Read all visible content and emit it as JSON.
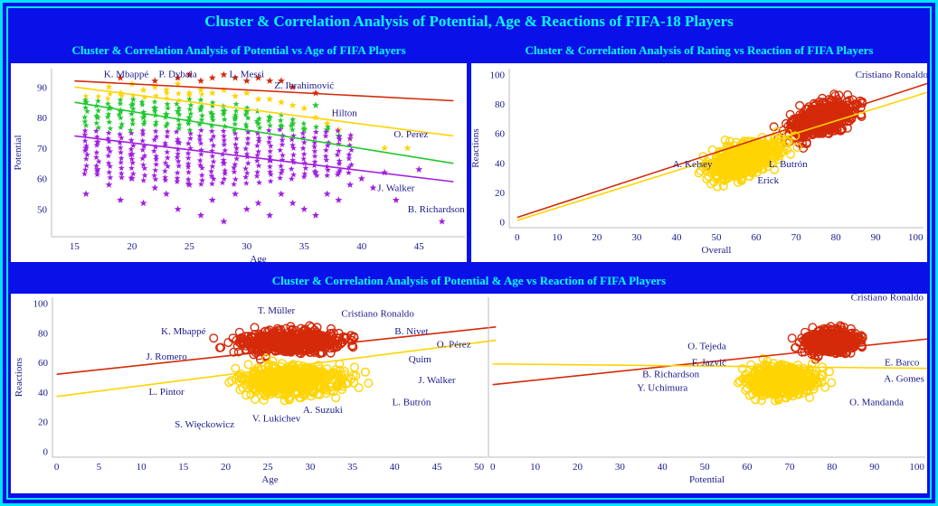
{
  "main_title": "Cluster & Correlation Analysis of Potential, Age & Reactions of FIFA-18 Players",
  "colors": {
    "background": "#0a10e8",
    "border": "#00e5ff",
    "title": "#00ffff",
    "label": "#1a1a8c",
    "red": "#d42a0a",
    "yellow": "#ffd400",
    "green": "#22c830",
    "purple": "#a020e0",
    "orange": "#ff8c00"
  },
  "chart_data": [
    {
      "type": "scatter",
      "title": "Cluster & Correlation Analysis of Potential vs Age of FIFA Players",
      "xlabel": "Age",
      "ylabel": "Potential",
      "xlim": [
        13,
        49
      ],
      "ylim": [
        41,
        96
      ],
      "xticks": [
        15,
        20,
        25,
        30,
        35,
        40,
        45
      ],
      "yticks": [
        50,
        60,
        70,
        80,
        90
      ],
      "marker": "star",
      "series": [
        {
          "color": "#a020e0",
          "points": [
            [
              16,
              55
            ],
            [
              17,
              63
            ],
            [
              18,
              58
            ],
            [
              19,
              53
            ],
            [
              20,
              60
            ],
            [
              21,
              52
            ],
            [
              22,
              57
            ],
            [
              23,
              55
            ],
            [
              24,
              50
            ],
            [
              25,
              58
            ],
            [
              26,
              48
            ],
            [
              27,
              53
            ],
            [
              28,
              46
            ],
            [
              29,
              55
            ],
            [
              30,
              50
            ],
            [
              31,
              52
            ],
            [
              32,
              48
            ],
            [
              33,
              55
            ],
            [
              34,
              52
            ],
            [
              35,
              50
            ],
            [
              36,
              48
            ],
            [
              37,
              55
            ],
            [
              38,
              53
            ],
            [
              39,
              58
            ],
            [
              40,
              60
            ],
            [
              41,
              57
            ],
            [
              42,
              62
            ],
            [
              43,
              53
            ],
            [
              45,
              63
            ],
            [
              47,
              46
            ],
            [
              16,
              70
            ],
            [
              17,
              72
            ],
            [
              20,
              68
            ],
            [
              24,
              72
            ],
            [
              28,
              65
            ],
            [
              32,
              66
            ],
            [
              36,
              62
            ],
            [
              38,
              62
            ]
          ]
        },
        {
          "color": "#22c830",
          "points": [
            [
              16,
              85
            ],
            [
              17,
              80
            ],
            [
              18,
              83
            ],
            [
              19,
              82
            ],
            [
              20,
              84
            ],
            [
              21,
              80
            ],
            [
              22,
              83
            ],
            [
              23,
              81
            ],
            [
              24,
              82
            ],
            [
              25,
              80
            ],
            [
              26,
              83
            ],
            [
              27,
              81
            ],
            [
              28,
              82
            ],
            [
              29,
              80
            ],
            [
              30,
              82
            ],
            [
              31,
              78
            ],
            [
              32,
              80
            ],
            [
              33,
              77
            ],
            [
              34,
              78
            ],
            [
              35,
              76
            ],
            [
              36,
              84
            ],
            [
              37,
              76
            ],
            [
              38,
              74
            ]
          ]
        },
        {
          "color": "#ffd400",
          "points": [
            [
              18,
              90
            ],
            [
              19,
              88
            ],
            [
              20,
              91
            ],
            [
              21,
              89
            ],
            [
              22,
              90
            ],
            [
              23,
              89
            ],
            [
              24,
              91
            ],
            [
              25,
              88
            ],
            [
              26,
              89
            ],
            [
              27,
              88
            ],
            [
              28,
              89
            ],
            [
              29,
              87
            ],
            [
              30,
              88
            ],
            [
              31,
              86
            ],
            [
              32,
              86
            ],
            [
              33,
              85
            ],
            [
              34,
              84
            ],
            [
              35,
              83
            ],
            [
              36,
              80
            ],
            [
              37,
              78
            ],
            [
              38,
              76
            ],
            [
              39,
              73
            ],
            [
              42,
              70
            ],
            [
              44,
              70
            ]
          ]
        },
        {
          "color": "#d42a0a",
          "points": [
            [
              19,
              93
            ],
            [
              22,
              92
            ],
            [
              24,
              93
            ],
            [
              25,
              94
            ],
            [
              26,
              92
            ],
            [
              27,
              93
            ],
            [
              28,
              94
            ],
            [
              29,
              93
            ],
            [
              30,
              92
            ],
            [
              31,
              93
            ],
            [
              32,
              92
            ],
            [
              33,
              92
            ],
            [
              34,
              90
            ],
            [
              36,
              88
            ]
          ]
        }
      ],
      "trend_lines": [
        {
          "color": "#d42a0a",
          "from": [
            15,
            92
          ],
          "to": [
            48,
            85.5
          ]
        },
        {
          "color": "#ffd400",
          "from": [
            15,
            90
          ],
          "to": [
            48,
            74
          ]
        },
        {
          "color": "#22c830",
          "from": [
            15,
            85
          ],
          "to": [
            48,
            65
          ]
        },
        {
          "color": "#a020e0",
          "from": [
            15,
            74
          ],
          "to": [
            48,
            59
          ]
        }
      ],
      "annotations": [
        {
          "text": "K. Mbappé",
          "x": 19.5,
          "y": 93.2
        },
        {
          "text": "P. Dybala",
          "x": 24,
          "y": 93.2
        },
        {
          "text": "L. Messi",
          "x": 30,
          "y": 93.2
        },
        {
          "text": "Z. Ibrahimović",
          "x": 35,
          "y": 89.5
        },
        {
          "text": "Hilton",
          "x": 38.5,
          "y": 80.5
        },
        {
          "text": "O. Perez",
          "x": 44.3,
          "y": 73.5
        },
        {
          "text": "J. Walker",
          "x": 43,
          "y": 56
        },
        {
          "text": "B. Richardson",
          "x": 46.5,
          "y": 49
        }
      ]
    },
    {
      "type": "scatter",
      "title": "Cluster & Correlation Analysis of Rating vs Reaction of FIFA Players",
      "xlabel": "Overall",
      "ylabel": "Reactions",
      "xlim": [
        -2,
        102
      ],
      "ylim": [
        -4,
        104
      ],
      "xticks": [
        0,
        10,
        20,
        30,
        40,
        50,
        60,
        70,
        80,
        90,
        100
      ],
      "yticks": [
        0,
        20,
        40,
        60,
        80,
        100
      ],
      "marker": "circle",
      "clusters": [
        {
          "color": "#d42a0a",
          "center": [
            77,
            70
          ],
          "spread": [
            8,
            11
          ]
        },
        {
          "color": "#ffd400",
          "center": [
            57,
            43
          ],
          "spread": [
            9,
            11
          ]
        }
      ],
      "trend_lines": [
        {
          "color": "#d42a0a",
          "from": [
            0,
            3
          ],
          "to": [
            103,
            94
          ]
        },
        {
          "color": "#ffd400",
          "from": [
            0,
            1
          ],
          "to": [
            103,
            88
          ]
        }
      ],
      "annotations": [
        {
          "text": "Cristiano Ronaldo",
          "x": 94,
          "y": 98
        },
        {
          "text": "A. Kelsey",
          "x": 44,
          "y": 37
        },
        {
          "text": "L. Butrón",
          "x": 68,
          "y": 37
        },
        {
          "text": "Erick",
          "x": 63,
          "y": 26
        }
      ]
    },
    {
      "type": "scatter",
      "title": "Cluster & Correlation Analysis of Potential & Age vs Reaction of FIFA Players",
      "xlabel": "Age",
      "ylabel": "Reactions",
      "xlim": [
        -0.5,
        51
      ],
      "ylim": [
        -4,
        104
      ],
      "xticks": [
        0,
        5,
        10,
        15,
        20,
        25,
        30,
        35,
        40,
        45,
        50
      ],
      "yticks": [
        0,
        20,
        40,
        60,
        80,
        100
      ],
      "marker": "circle",
      "clusters": [
        {
          "color": "#d42a0a",
          "center": [
            28,
            74
          ],
          "spread": [
            6,
            8
          ]
        },
        {
          "color": "#ffd400",
          "center": [
            28,
            48
          ],
          "spread": [
            6,
            10
          ]
        }
      ],
      "trend_lines": [
        {
          "color": "#d42a0a",
          "from": [
            0,
            52
          ],
          "to": [
            52,
            84
          ]
        },
        {
          "color": "#ffd400",
          "from": [
            0,
            37
          ],
          "to": [
            52,
            75
          ]
        }
      ],
      "annotations": [
        {
          "text": "T. Müller",
          "x": 26,
          "y": 93
        },
        {
          "text": "Cristiano Ronaldo",
          "x": 38,
          "y": 91
        },
        {
          "text": "K. Mbappé",
          "x": 15,
          "y": 79
        },
        {
          "text": "B. Nivet",
          "x": 42,
          "y": 79
        },
        {
          "text": "O. Pérez",
          "x": 47,
          "y": 70
        },
        {
          "text": "J. Romero",
          "x": 13,
          "y": 62
        },
        {
          "text": "Quim",
          "x": 43,
          "y": 60
        },
        {
          "text": "J. Walker",
          "x": 45,
          "y": 46
        },
        {
          "text": "L. Pintor",
          "x": 13,
          "y": 38
        },
        {
          "text": "L. Butrón",
          "x": 42,
          "y": 31
        },
        {
          "text": "A. Suzuki",
          "x": 31.5,
          "y": 26
        },
        {
          "text": "V. Lukichev",
          "x": 26,
          "y": 20
        },
        {
          "text": "S. Więckowicz",
          "x": 17.5,
          "y": 16
        }
      ]
    },
    {
      "type": "scatter",
      "xlabel": "Potential",
      "ylabel": "",
      "xlim": [
        -1,
        102
      ],
      "ylim": [
        -4,
        104
      ],
      "xticks": [
        0,
        10,
        20,
        30,
        40,
        50,
        60,
        70,
        80,
        90,
        100
      ],
      "yticks": [],
      "marker": "circle",
      "clusters": [
        {
          "color": "#d42a0a",
          "center": [
            80,
            74
          ],
          "spread": [
            6,
            8
          ]
        },
        {
          "color": "#ffd400",
          "center": [
            68,
            48
          ],
          "spread": [
            8,
            10
          ]
        }
      ],
      "trend_lines": [
        {
          "color": "#d42a0a",
          "from": [
            0,
            45
          ],
          "to": [
            103,
            76
          ]
        },
        {
          "color": "#ffd400",
          "from": [
            0,
            59
          ],
          "to": [
            103,
            56
          ]
        }
      ],
      "annotations": [
        {
          "text": "Cristiano Ronaldo",
          "x": 93,
          "y": 102
        },
        {
          "text": "O. Tejeda",
          "x": 50.5,
          "y": 69
        },
        {
          "text": "F. Jazvić",
          "x": 51,
          "y": 58
        },
        {
          "text": "E. Barco",
          "x": 96.5,
          "y": 58
        },
        {
          "text": "B. Richardson",
          "x": 42,
          "y": 50
        },
        {
          "text": "A. Gomes",
          "x": 97,
          "y": 47
        },
        {
          "text": "Y. Uchimura",
          "x": 40,
          "y": 41
        },
        {
          "text": "O. Mandanda",
          "x": 90.5,
          "y": 31
        }
      ]
    }
  ]
}
